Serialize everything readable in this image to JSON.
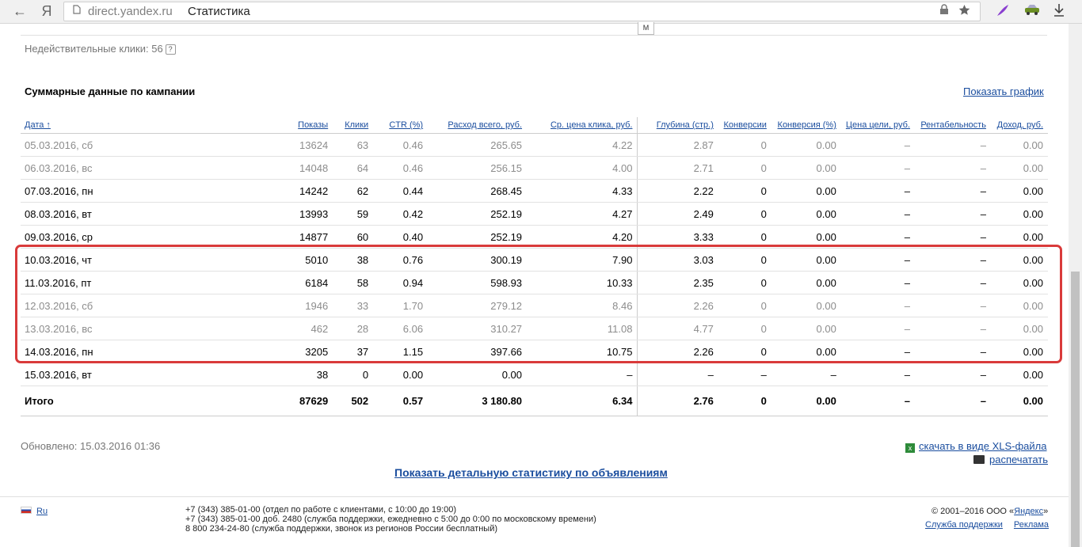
{
  "browser": {
    "host": "direct.yandex.ru",
    "title": "Статистика",
    "back_icon": "←",
    "yandex_icon": "Я"
  },
  "page": {
    "tab_marker": "M",
    "invalid_clicks_label": "Недействительные клики: 56",
    "help_icon": "?",
    "summary_title": "Суммарные данные по кампании",
    "show_chart": "Показать график",
    "updated": "Обновлено: 15.03.2016 01:36",
    "download_xls": "скачать в виде XLS-файла",
    "print": "распечатать",
    "detail_link": "Показать детальную статистику по объявлениям"
  },
  "table": {
    "headers": [
      "Дата ↑",
      "Показы",
      "Клики",
      "CTR (%)",
      "Расход всего, руб.",
      "Ср. цена клика, руб.",
      "Глубина (стр.)",
      "Конверсии",
      "Конверсия (%)",
      "Цена цели, руб.",
      "Рентабельность",
      "Доход, руб."
    ],
    "rows": [
      {
        "weekend": true,
        "cells": [
          "05.03.2016, сб",
          "13624",
          "63",
          "0.46",
          "265.65",
          "4.22",
          "2.87",
          "0",
          "0.00",
          "–",
          "–",
          "0.00"
        ]
      },
      {
        "weekend": true,
        "cells": [
          "06.03.2016, вс",
          "14048",
          "64",
          "0.46",
          "256.15",
          "4.00",
          "2.71",
          "0",
          "0.00",
          "–",
          "–",
          "0.00"
        ]
      },
      {
        "weekend": false,
        "cells": [
          "07.03.2016, пн",
          "14242",
          "62",
          "0.44",
          "268.45",
          "4.33",
          "2.22",
          "0",
          "0.00",
          "–",
          "–",
          "0.00"
        ]
      },
      {
        "weekend": false,
        "cells": [
          "08.03.2016, вт",
          "13993",
          "59",
          "0.42",
          "252.19",
          "4.27",
          "2.49",
          "0",
          "0.00",
          "–",
          "–",
          "0.00"
        ]
      },
      {
        "weekend": false,
        "cells": [
          "09.03.2016, ср",
          "14877",
          "60",
          "0.40",
          "252.19",
          "4.20",
          "3.33",
          "0",
          "0.00",
          "–",
          "–",
          "0.00"
        ]
      },
      {
        "weekend": false,
        "cells": [
          "10.03.2016, чт",
          "5010",
          "38",
          "0.76",
          "300.19",
          "7.90",
          "3.03",
          "0",
          "0.00",
          "–",
          "–",
          "0.00"
        ]
      },
      {
        "weekend": false,
        "cells": [
          "11.03.2016, пт",
          "6184",
          "58",
          "0.94",
          "598.93",
          "10.33",
          "2.35",
          "0",
          "0.00",
          "–",
          "–",
          "0.00"
        ]
      },
      {
        "weekend": true,
        "cells": [
          "12.03.2016, сб",
          "1946",
          "33",
          "1.70",
          "279.12",
          "8.46",
          "2.26",
          "0",
          "0.00",
          "–",
          "–",
          "0.00"
        ]
      },
      {
        "weekend": true,
        "cells": [
          "13.03.2016, вс",
          "462",
          "28",
          "6.06",
          "310.27",
          "11.08",
          "4.77",
          "0",
          "0.00",
          "–",
          "–",
          "0.00"
        ]
      },
      {
        "weekend": false,
        "cells": [
          "14.03.2016, пн",
          "3205",
          "37",
          "1.15",
          "397.66",
          "10.75",
          "2.26",
          "0",
          "0.00",
          "–",
          "–",
          "0.00"
        ]
      },
      {
        "weekend": false,
        "cells": [
          "15.03.2016, вт",
          "38",
          "0",
          "0.00",
          "0.00",
          "–",
          "–",
          "–",
          "–",
          "–",
          "–",
          "0.00"
        ]
      }
    ],
    "total": [
      "Итого",
      "87629",
      "502",
      "0.57",
      "3 180.80",
      "6.34",
      "2.76",
      "0",
      "0.00",
      "–",
      "–",
      "0.00"
    ]
  },
  "footer": {
    "lang": "Ru",
    "phone1": "+7 (343) 385-01-00 (отдел по работе с клиентами, с 10:00 до 19:00)",
    "phone2": "+7 (343) 385-01-00 доб. 2480 (служба поддержки, ежедневно с 5:00 до 0:00 по московскому времени)",
    "phone3": "8 800 234-24-80 (служба поддержки, звонок из регионов России бесплатный)",
    "copyright": "© 2001–2016  ООО «",
    "yandex": "Яндекс",
    "copyright_end": "»",
    "support": "Служба поддержки",
    "ads": "Реклама"
  },
  "colors": {
    "link": "#1a4d9e",
    "highlight_box": "#d93a3a",
    "weekend_text": "#8c8c8c"
  }
}
